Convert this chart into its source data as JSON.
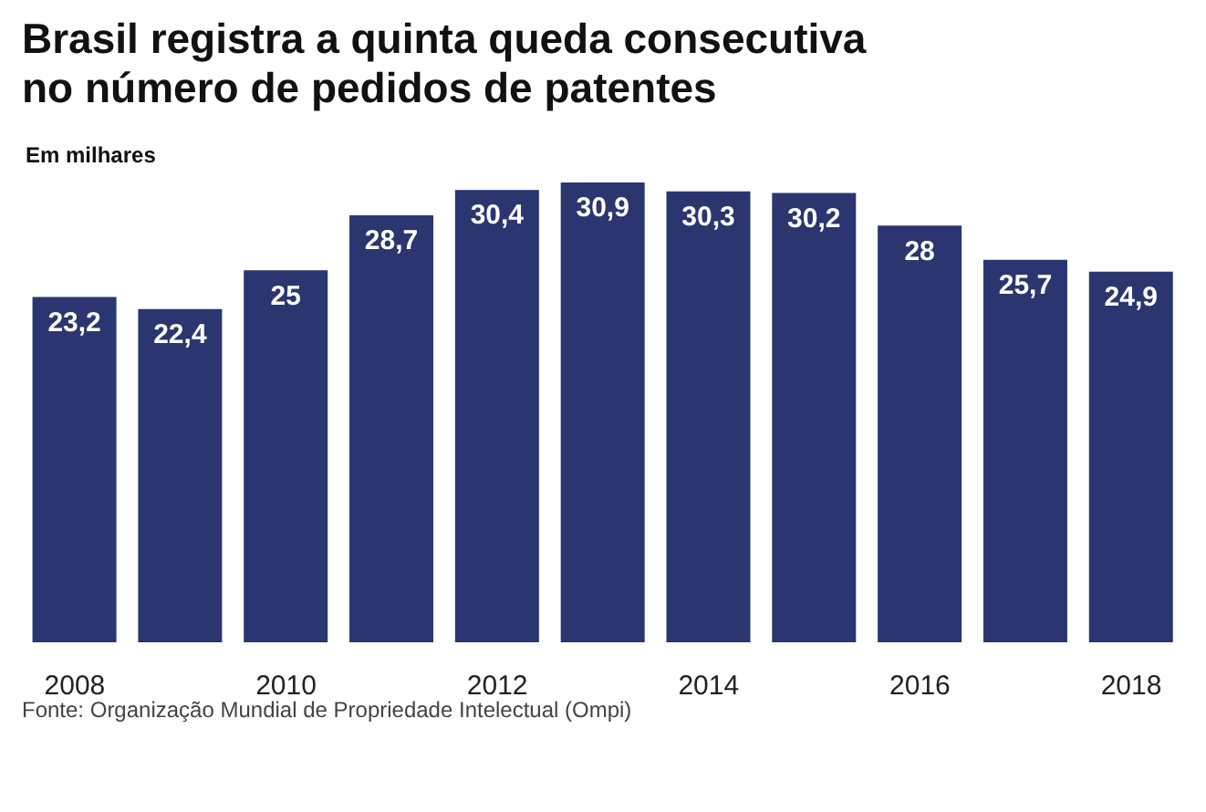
{
  "chart_data": {
    "type": "bar",
    "title": "Brasil registra a quinta queda consecutiva\nno número de pedidos de patentes",
    "subtitle": "Em milhares",
    "categories": [
      "2008",
      null,
      "2010",
      null,
      "2012",
      null,
      "2014",
      null,
      "2016",
      null,
      "2018"
    ],
    "values": [
      23.2,
      22.4,
      25,
      28.7,
      30.4,
      30.9,
      30.3,
      30.2,
      28,
      25.7,
      24.9
    ],
    "value_labels": [
      "23,2",
      "22,4",
      "25",
      "28,7",
      "30,4",
      "30,9",
      "30,3",
      "30,2",
      "28",
      "25,7",
      "24,9"
    ],
    "color": "#2b3670",
    "annotations": [
      "Fonte: Organização Mundial de Propriedade Intelectual (Ompi)"
    ]
  }
}
